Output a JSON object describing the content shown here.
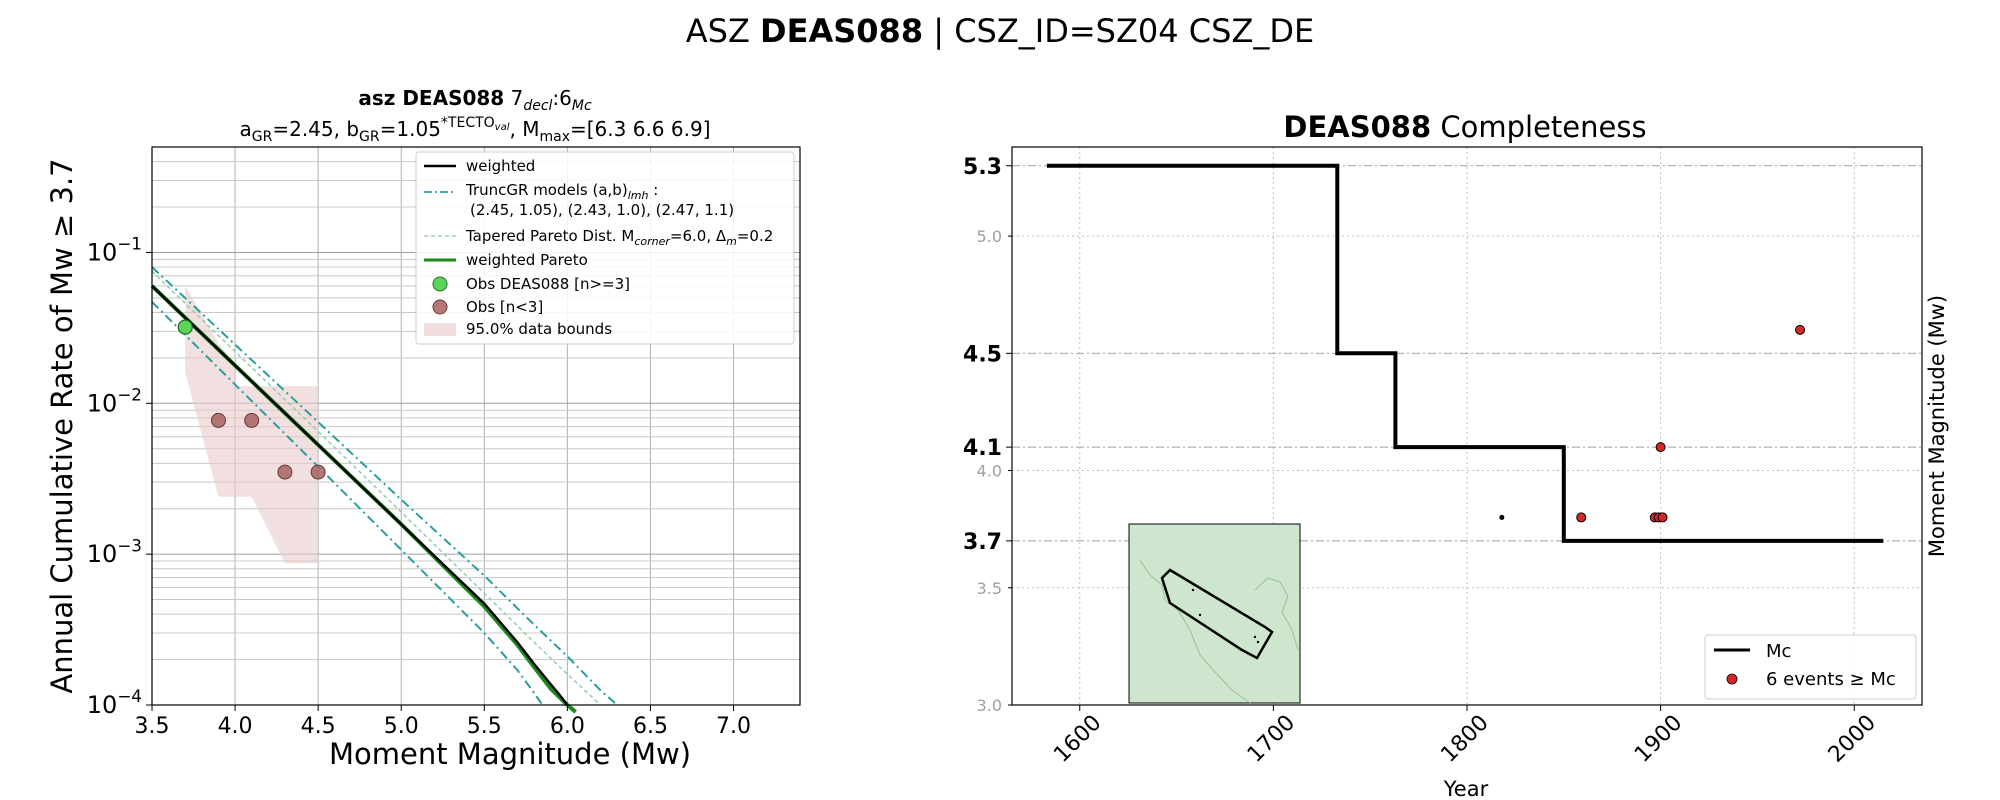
{
  "figure": {
    "title_prefix": "ASZ ",
    "title_bold": "DEAS088",
    "title_suffix": " | CSZ_ID=SZ04 CSZ_DE"
  },
  "chart_data": [
    {
      "type": "line",
      "title_line1_bold": "asz DEAS088",
      "title_line1_rest": "7",
      "title_line1_sub1": "decl",
      "title_line1_mid": ":6",
      "title_line1_sub2": "Mc",
      "title_line2": "a_GR=2.45, b_GR=1.05^*TECTO_val, M_max=[6.3 6.6 6.9]",
      "xlabel": "Moment Magnitude (Mw)",
      "ylabel": "Annual Cumulative Rate of Mw ≥ 3.7",
      "xlim": [
        3.5,
        7.4
      ],
      "ylim": [
        0.0001,
        0.5
      ],
      "yscale": "log",
      "grid": true,
      "legend_position": "upper-right",
      "xticks": [
        "3.5",
        "4.0",
        "4.5",
        "5.0",
        "5.5",
        "6.0",
        "6.5",
        "7.0"
      ],
      "yticks": [
        "10^-1",
        "10^-2",
        "10^-3",
        "10^-4"
      ],
      "legend": [
        {
          "label": "weighted",
          "style": "solid",
          "color": "#000000"
        },
        {
          "label": "TruncGR models (a,b)lmh :",
          "label2": "(2.45, 1.05), (2.43, 1.0), (2.47, 1.1)",
          "style": "dashdot",
          "color": "#2a9d9d"
        },
        {
          "label": "Tapered Pareto Dist. Mcorner=6.0, Δm=0.2",
          "style": "dashed",
          "color": "#9fd4b4"
        },
        {
          "label": "weighted Pareto",
          "style": "solid",
          "color": "#1a8a1a"
        },
        {
          "label": "Obs DEAS088 [n>=3]",
          "style": "marker",
          "color": "#5ad45a"
        },
        {
          "label": "Obs [n<3]",
          "style": "marker",
          "color": "#a86060"
        },
        {
          "label": "95.0% data bounds",
          "style": "patch",
          "color": "#f0dede"
        }
      ],
      "series": [
        {
          "name": "weighted",
          "x": [
            3.5,
            4.0,
            4.5,
            5.0,
            5.5,
            5.7,
            5.8,
            5.9,
            5.95,
            6.0
          ],
          "y": [
            0.06,
            0.0178,
            0.0053,
            0.00158,
            0.00047,
            0.00026,
            0.000187,
            0.000137,
            0.000118,
            0.0001
          ]
        },
        {
          "name": "weighted Pareto",
          "x": [
            3.5,
            4.0,
            4.5,
            5.0,
            5.5,
            5.7,
            5.8,
            5.9,
            6.0,
            6.05
          ],
          "y": [
            0.06,
            0.0178,
            0.0053,
            0.00158,
            0.00045,
            0.00025,
            0.000178,
            0.000128,
            0.0001,
            9e-05
          ]
        },
        {
          "name": "TruncGR high",
          "x": [
            3.5,
            4.0,
            4.5,
            5.0,
            5.5,
            5.8,
            6.0,
            6.2,
            6.3
          ],
          "y": [
            0.08,
            0.0245,
            0.0075,
            0.0023,
            0.00072,
            0.00034,
            0.00021,
            0.000125,
            0.0001
          ]
        },
        {
          "name": "TruncGR low",
          "x": [
            3.5,
            4.0,
            4.5,
            5.0,
            5.5,
            5.7,
            5.8,
            5.85
          ],
          "y": [
            0.047,
            0.0133,
            0.0038,
            0.00107,
            0.0003,
            0.00017,
            0.00012,
            0.0001
          ]
        },
        {
          "name": "Tapered Pareto",
          "x": [
            3.5,
            4.0,
            4.5,
            5.0,
            5.5,
            5.8,
            6.0,
            6.2
          ],
          "y": [
            0.075,
            0.022,
            0.0065,
            0.0019,
            0.00055,
            0.00026,
            0.00016,
            0.0001
          ]
        }
      ],
      "obs_main": [
        {
          "x": 3.7,
          "y": 0.032
        }
      ],
      "obs_minor": [
        {
          "x": 3.9,
          "y": 0.0077
        },
        {
          "x": 4.1,
          "y": 0.0077
        },
        {
          "x": 4.3,
          "y": 0.0035
        },
        {
          "x": 4.5,
          "y": 0.0035
        }
      ],
      "bounds_upper": [
        [
          3.7,
          0.06
        ],
        [
          3.9,
          0.025
        ],
        [
          4.0,
          0.018
        ],
        [
          4.0,
          0.013
        ],
        [
          4.2,
          0.013
        ],
        [
          4.5,
          0.013
        ],
        [
          4.5,
          0.00095
        ]
      ],
      "bounds_lower": [
        [
          3.7,
          0.016
        ],
        [
          3.9,
          0.0024
        ],
        [
          4.1,
          0.0024
        ],
        [
          4.3,
          0.00087
        ],
        [
          4.5,
          0.00087
        ]
      ]
    },
    {
      "type": "scatter",
      "title_bold": "DEAS088",
      "title_rest": " Completeness",
      "xlabel": "Year",
      "ylabel": "Moment Magnitude (Mw)",
      "xlim": [
        1565,
        2035
      ],
      "ylim": [
        3.0,
        5.38
      ],
      "grid": true,
      "xticks": [
        1600,
        1700,
        1800,
        1900,
        2000
      ],
      "yticks_minor": [
        3.0,
        3.5,
        4.0,
        5.0
      ],
      "yticks_major": [
        3.7,
        4.1,
        4.5,
        5.3
      ],
      "legend_position": "lower-right",
      "legend": [
        {
          "label": "Mc",
          "style": "solid",
          "color": "#000000"
        },
        {
          "label": "6 events ≥ Mc",
          "style": "marker",
          "color": "#d62728"
        }
      ],
      "mc_step": [
        [
          1583,
          5.3
        ],
        [
          1733,
          5.3
        ],
        [
          1733,
          4.5
        ],
        [
          1763,
          4.5
        ],
        [
          1763,
          4.1
        ],
        [
          1850,
          4.1
        ],
        [
          1850,
          3.7
        ],
        [
          2015,
          3.7
        ]
      ],
      "events": [
        {
          "x": 1859,
          "y": 3.8
        },
        {
          "x": 1897,
          "y": 3.8
        },
        {
          "x": 1899,
          "y": 3.8
        },
        {
          "x": 1901,
          "y": 3.8
        },
        {
          "x": 1900,
          "y": 4.1
        },
        {
          "x": 1972,
          "y": 4.6
        }
      ],
      "minor_events": [
        {
          "x": 1818,
          "y": 3.8
        }
      ],
      "inset": {
        "fill": "#cde6cd",
        "border": "#000000"
      }
    }
  ]
}
